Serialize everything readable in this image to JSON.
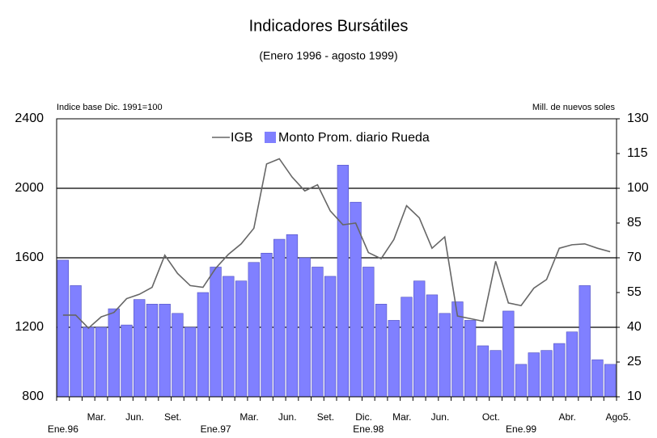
{
  "chart_data": {
    "type": "bar-line",
    "title": "Indicadores Bursátiles",
    "subtitle": "(Enero 1996 - agosto 1999)",
    "y_label": "Indice base Dic. 1991=100",
    "y2_label": "Mill. de nuevos soles",
    "categories": [
      "Ene.96",
      null,
      "Mar.",
      null,
      null,
      "Jun.",
      null,
      null,
      "Set.",
      null,
      null,
      null,
      "Ene.97",
      null,
      "Mar.",
      null,
      null,
      "Jun.",
      null,
      null,
      "Set.",
      null,
      null,
      "Dic.",
      "Ene.98",
      null,
      "Mar.",
      null,
      null,
      "Jun.",
      null,
      null,
      null,
      "Oct.",
      null,
      null,
      "Ene.99",
      null,
      null,
      "Abr.",
      null,
      null,
      null,
      "Ago5."
    ],
    "series": [
      {
        "name": "Monto Prom. diario Rueda",
        "type": "bar",
        "axis": "y2",
        "color": "#8080ff",
        "values": [
          69,
          58,
          40,
          40,
          48,
          41,
          52,
          50,
          50,
          46,
          40,
          55,
          66,
          62,
          60,
          68,
          72,
          78,
          80,
          70,
          66,
          62,
          110,
          94,
          66,
          50,
          43,
          53,
          60,
          54,
          46,
          51,
          43,
          32,
          30,
          47,
          24,
          29,
          30,
          33,
          38,
          58,
          26,
          24
        ]
      },
      {
        "name": "IGB",
        "type": "line",
        "axis": "y",
        "color": "#666666",
        "values": [
          1270,
          1270,
          1195,
          1260,
          1285,
          1365,
          1390,
          1430,
          1615,
          1510,
          1440,
          1430,
          1540,
          1620,
          1680,
          1770,
          2140,
          2170,
          2065,
          1985,
          2020,
          1870,
          1790,
          1800,
          1630,
          1595,
          1705,
          1900,
          1830,
          1655,
          1720,
          1265,
          1250,
          1235,
          1580,
          1340,
          1325,
          1425,
          1475,
          1655,
          1675,
          1680,
          1655,
          1635
        ]
      }
    ],
    "ylim": [
      800,
      2400
    ],
    "yticks": [
      800,
      1200,
      1600,
      2000,
      2400
    ],
    "y2lim": [
      10,
      130
    ],
    "y2ticks": [
      10,
      25,
      40,
      55,
      70,
      85,
      100,
      115,
      130
    ],
    "grid": true
  }
}
